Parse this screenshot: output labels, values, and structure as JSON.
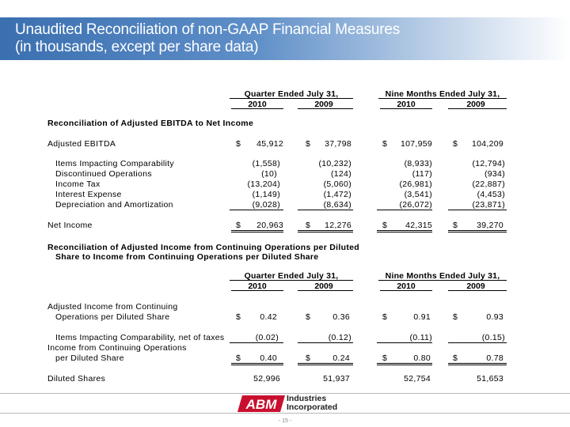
{
  "title": {
    "line1": "Unaudited Reconciliation of non-GAAP Financial Measures",
    "line2": "(in thousands, except per share data)"
  },
  "periods": {
    "quarter": "Quarter Ended July 31,",
    "nine_months": "Nine Months Ended July 31,",
    "years": [
      "2010",
      "2009",
      "2010",
      "2009"
    ]
  },
  "ebitda_section": {
    "heading": "Reconciliation of Adjusted EBITDA to Net Income",
    "rows": [
      {
        "label": "Adjusted EBITDA",
        "values": [
          "45,912",
          "37,798",
          "107,959",
          "104,209"
        ],
        "dollar": true
      },
      {
        "label": "Items Impacting Comparability",
        "values": [
          "(1,558)",
          "(10,232)",
          "(8,933)",
          "(12,794)"
        ]
      },
      {
        "label": "Discontinued Operations",
        "values": [
          "(10)",
          "(124)",
          "(117)",
          "(934)"
        ]
      },
      {
        "label": "Income Tax",
        "values": [
          "(13,204)",
          "(5,060)",
          "(26,981)",
          "(22,887)"
        ]
      },
      {
        "label": "Interest Expense",
        "values": [
          "(1,149)",
          "(1,472)",
          "(3,541)",
          "(4,453)"
        ]
      },
      {
        "label": "Depreciation and Amortization",
        "values": [
          "(9,028)",
          "(8,634)",
          "(26,072)",
          "(23,871)"
        ]
      },
      {
        "label": "Net Income",
        "values": [
          "20,963",
          "12,276",
          "42,315",
          "39,270"
        ],
        "dollar": true
      }
    ]
  },
  "eps_section": {
    "heading_line1": "Reconciliation of Adjusted Income from Continuing Operations per Diluted",
    "heading_line2": "Share to Income from Continuing Operations per Diluted Share",
    "adjusted_label_1": "Adjusted Income from Continuing",
    "adjusted_label_2": "Operations per Diluted Share",
    "adjusted_values": [
      "0.42",
      "0.36",
      "0.91",
      "0.93"
    ],
    "items_label": "Items Impacting Comparability, net of taxes",
    "items_values": [
      "(0.02)",
      "(0.12)",
      "(0.11)",
      "(0.15)"
    ],
    "income_label_1": "Income from Continuing Operations",
    "income_label_2": "per Diluted Share",
    "income_values": [
      "0.40",
      "0.24",
      "0.80",
      "0.78"
    ],
    "diluted_label": "Diluted Shares",
    "diluted_values": [
      "52,996",
      "51,937",
      "52,754",
      "51,653"
    ]
  },
  "currency_symbol": "$",
  "logo": {
    "mark": "ABM",
    "line1": "Industries",
    "line2": "Incorporated",
    "brand_color": "#c8102e"
  },
  "page_number": "- 15 -"
}
